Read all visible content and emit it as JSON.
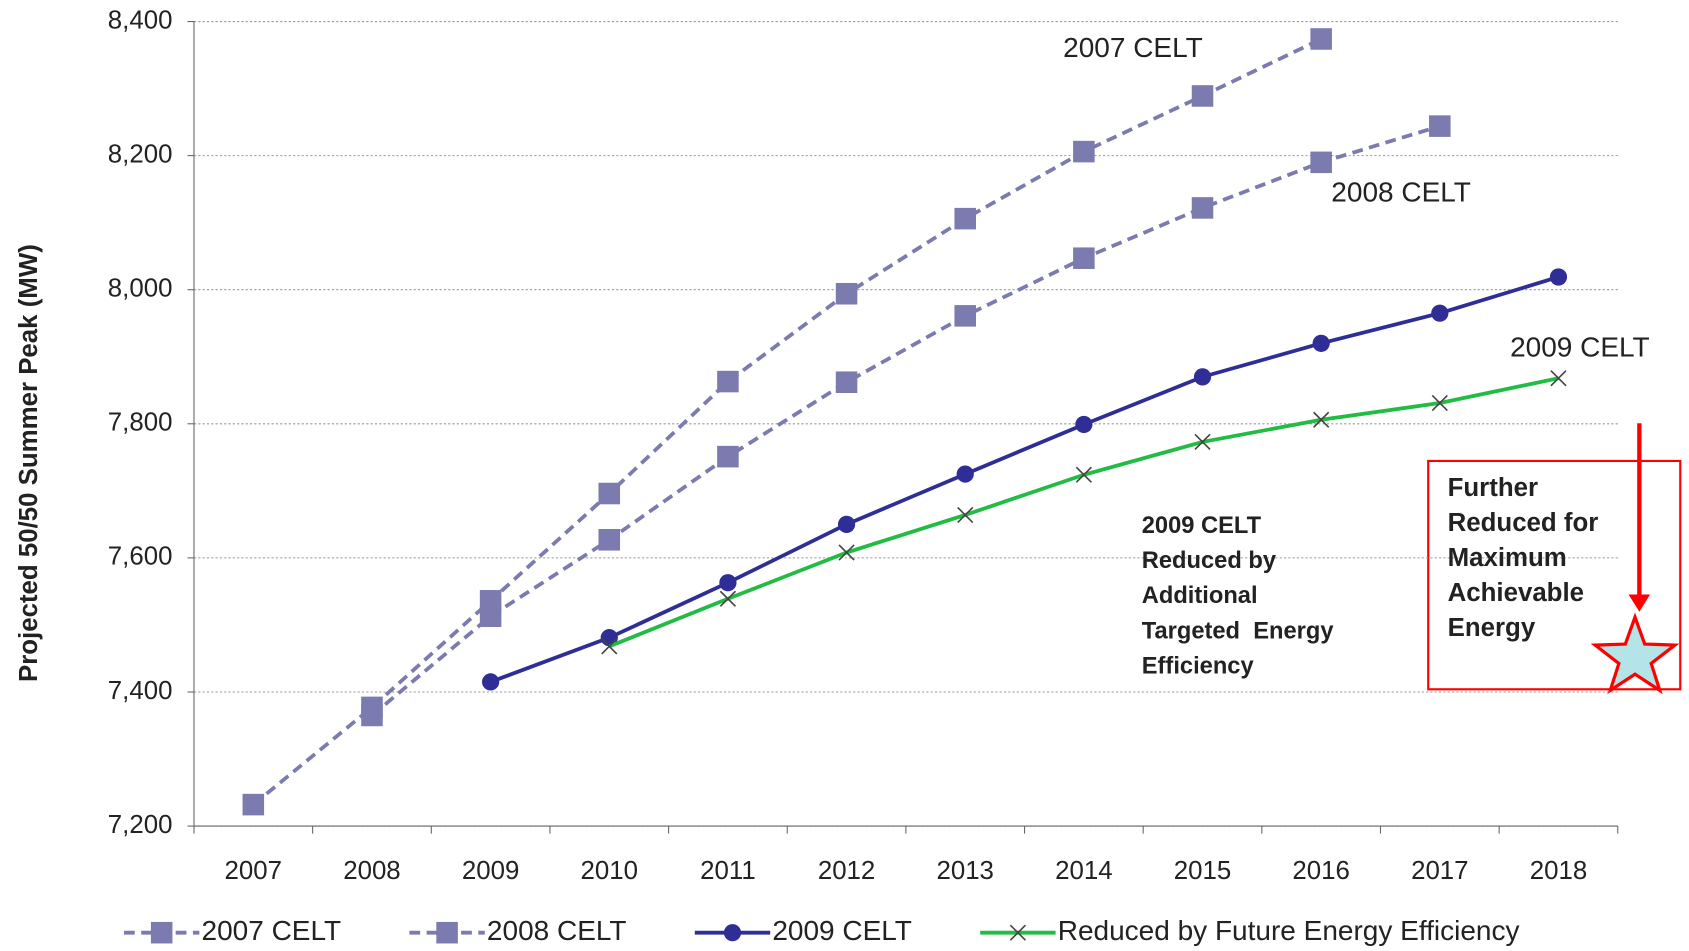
{
  "chart_data": {
    "type": "line",
    "y_label": "Projected 50/50 Summer Peak (MW)",
    "categories": [
      "2007",
      "2008",
      "2009",
      "2010",
      "2011",
      "2012",
      "2013",
      "2014",
      "2015",
      "2016",
      "2017",
      "2018"
    ],
    "ylim": [
      7200,
      8400
    ],
    "yticks": [
      {
        "value": 7200,
        "label": "7,200"
      },
      {
        "value": 7400,
        "label": "7,400"
      },
      {
        "value": 7600,
        "label": "7,600"
      },
      {
        "value": 7800,
        "label": "7,800"
      },
      {
        "value": 8000,
        "label": "8,000"
      },
      {
        "value": 8200,
        "label": "8,200"
      },
      {
        "value": 8400,
        "label": "8,400"
      }
    ],
    "grid": true,
    "legend": "bottom",
    "series": [
      {
        "name": "2007 CELT",
        "color": "#7b7bb0",
        "dash": true,
        "marker": "square",
        "values": [
          7232,
          7377,
          7536,
          7696,
          7863,
          7994,
          8106,
          8206,
          8289,
          8374,
          null,
          null
        ]
      },
      {
        "name": "2008 CELT",
        "color": "#7b7bb0",
        "dash": true,
        "marker": "square",
        "values": [
          null,
          7365,
          7513,
          7627,
          7751,
          7862,
          7961,
          8047,
          8122,
          8190,
          8244,
          null
        ]
      },
      {
        "name": "2009 CELT",
        "color": "#2e2e96",
        "dash": false,
        "marker": "circle",
        "values": [
          null,
          null,
          7415,
          7481,
          7563,
          7650,
          7725,
          7799,
          7870,
          7920,
          7965,
          8019
        ]
      },
      {
        "name": "Reduced by Future Energy Efficiency",
        "color": "#22bb44",
        "dash": false,
        "marker": "x",
        "values": [
          null,
          null,
          null,
          7468,
          7539,
          7608,
          7664,
          7724,
          7773,
          7806,
          7831,
          7868
        ]
      }
    ],
    "annotations": [
      {
        "text": "2007 CELT",
        "color": "#222222"
      },
      {
        "text": "2008 CELT",
        "color": "#222222"
      },
      {
        "text": "2009 CELT",
        "color": "#222222"
      },
      {
        "lines": [
          "2009 CELT",
          "Reduced by",
          "Additional",
          "Targeted  Energy",
          "Efficiency"
        ],
        "color": "#22bb44"
      },
      {
        "lines": [
          "Further",
          "Reduced for",
          "Maximum",
          "Achievable",
          "Energy"
        ],
        "color": "#ff0000"
      }
    ]
  }
}
